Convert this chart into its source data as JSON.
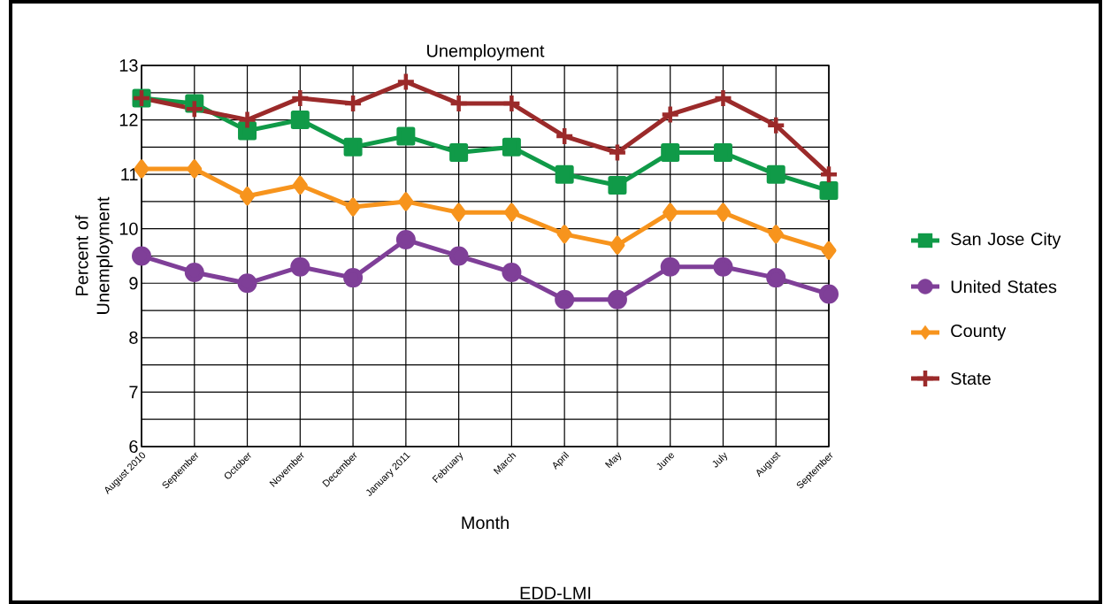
{
  "chart_data": {
    "type": "line",
    "title": "Unemployment",
    "xlabel": "Month",
    "ylabel": "Percent of Unemployment",
    "annotations": [
      "EDD-LMI"
    ],
    "categories": [
      "August 2010",
      "September",
      "October",
      "November",
      "December",
      "January 2011",
      "February",
      "March",
      "April",
      "May",
      "June",
      "July",
      "August",
      "September"
    ],
    "series": [
      {
        "name": "San Jose City",
        "color": "#109a48",
        "marker": "square",
        "values": [
          12.4,
          12.3,
          11.8,
          12.0,
          11.5,
          11.7,
          11.4,
          11.5,
          11.0,
          10.8,
          11.4,
          11.4,
          11.0,
          10.7
        ]
      },
      {
        "name": "United States",
        "color": "#7f3f98",
        "marker": "circle",
        "values": [
          9.5,
          9.2,
          9.0,
          9.3,
          9.1,
          9.8,
          9.5,
          9.2,
          8.7,
          8.7,
          9.3,
          9.3,
          9.1,
          8.8
        ]
      },
      {
        "name": "County",
        "color": "#f7941d",
        "marker": "diamond",
        "values": [
          11.1,
          11.1,
          10.6,
          10.8,
          10.4,
          10.5,
          10.3,
          10.3,
          9.9,
          9.7,
          10.3,
          10.3,
          9.9,
          9.6
        ]
      },
      {
        "name": "State",
        "color": "#9b2a2a",
        "marker": "cross",
        "values": [
          12.4,
          12.2,
          12.0,
          12.4,
          12.3,
          12.7,
          12.3,
          12.3,
          11.7,
          11.4,
          12.1,
          12.4,
          11.9,
          11.0
        ]
      }
    ],
    "ylim": [
      6,
      13
    ],
    "yticks": [
      6,
      {
        "value": 6.5,
        "label": null
      },
      7,
      {
        "value": 7.5,
        "label": null
      },
      8,
      {
        "value": 8.5,
        "label": null
      },
      9,
      {
        "value": 9.5,
        "label": null
      },
      10,
      {
        "value": 10.5,
        "label": null
      },
      11,
      {
        "value": 11.5,
        "label": null
      },
      12,
      {
        "value": 12.5,
        "label": null
      },
      13
    ],
    "grid": true,
    "legend": "right",
    "line_style": "solid"
  }
}
